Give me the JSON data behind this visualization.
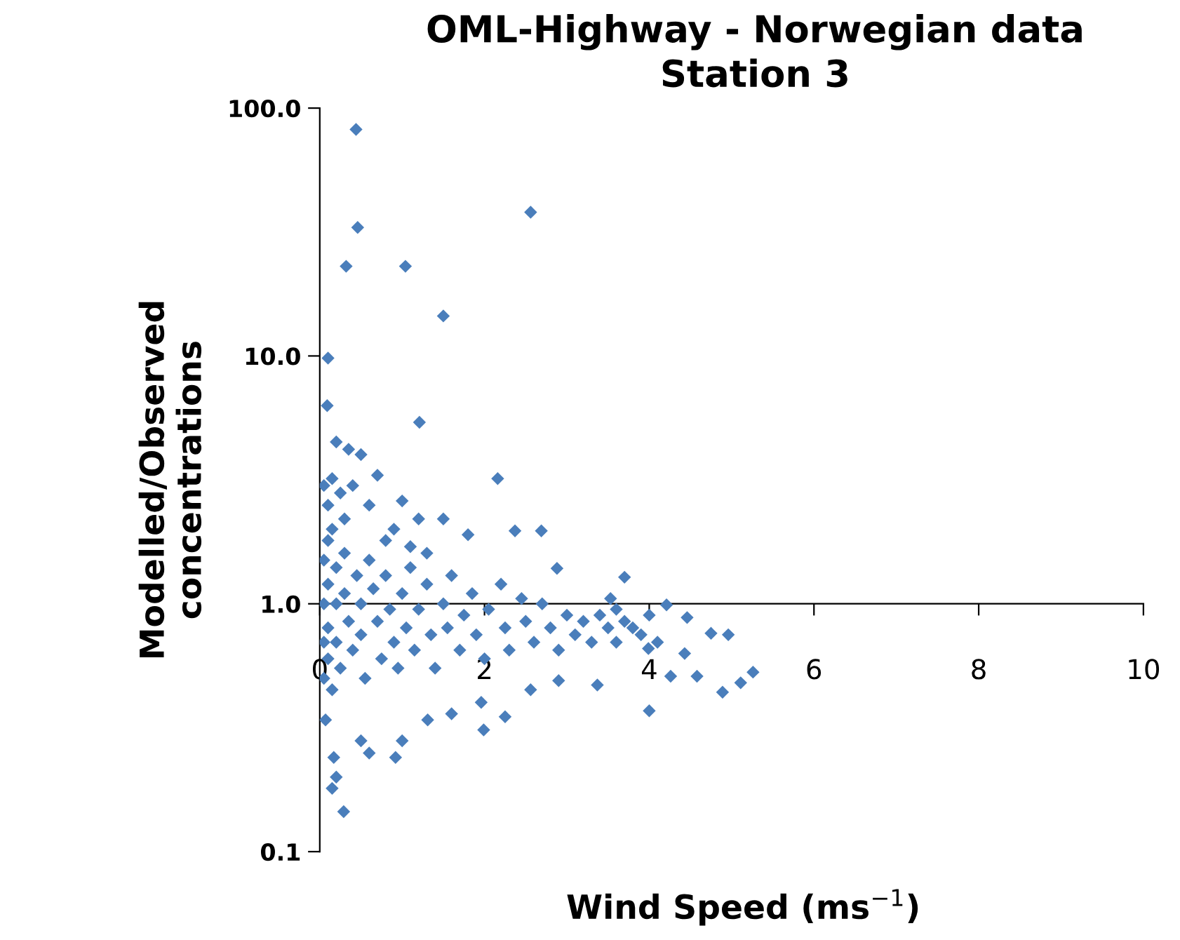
{
  "chart_data": {
    "type": "scatter",
    "title": "OML-Highway - Norwegian data\nStation 3",
    "xlabel": "Wind Speed (ms$^{−1}$)",
    "ylabel": "Modelled/Observed\nconcentrations",
    "log": "y",
    "grid": false,
    "marker": "diamond",
    "xlim": [
      0,
      10
    ],
    "xticks": [
      0,
      2,
      4,
      6,
      8,
      10
    ],
    "ylim": [
      0.1,
      100
    ],
    "yticks": [
      {
        "value": 0.1,
        "label": "0.1"
      },
      {
        "value": 1,
        "label": "1.0"
      },
      {
        "value": 10,
        "label": "10.0"
      },
      {
        "value": 100,
        "label": "100.0"
      }
    ],
    "series": [
      {
        "color": "#4a7ebb",
        "x": [
          0.44,
          0.46,
          2.56,
          0.32,
          1.04,
          1.5,
          0.1,
          0.09,
          1.21,
          0.2,
          0.35,
          0.5,
          0.15,
          0.4,
          0.7,
          0.6,
          1.0,
          1.2,
          0.9,
          1.5,
          1.8,
          2.16,
          2.37,
          2.69,
          2.88,
          3.7,
          1.3,
          0.3,
          0.1,
          4.46,
          4.75,
          4.96,
          5.26,
          5.11,
          4.89,
          4.58,
          4.0,
          4.26,
          4.43,
          3.99,
          4.21,
          3.53,
          0.29,
          0.15,
          0.2,
          0.17,
          0.6,
          0.92,
          1.0,
          1.31,
          1.6,
          1.99,
          2.25,
          2.56,
          2.9,
          3.37,
          1.96,
          0.5,
          0.07,
          0.05,
          0.05,
          0.05,
          0.05,
          0.1,
          0.1,
          0.1,
          0.1,
          0.15,
          0.2,
          0.2,
          0.2,
          0.25,
          0.3,
          0.3,
          0.35,
          0.4,
          0.45,
          0.5,
          0.5,
          0.55,
          0.6,
          0.65,
          0.7,
          0.75,
          0.8,
          0.85,
          0.9,
          0.95,
          1.0,
          1.05,
          1.1,
          1.15,
          1.2,
          1.3,
          1.35,
          1.4,
          1.5,
          1.55,
          1.6,
          1.7,
          1.75,
          1.85,
          1.9,
          2.0,
          2.05,
          2.2,
          2.25,
          2.3,
          2.45,
          2.5,
          2.6,
          2.7,
          2.8,
          2.9,
          3.0,
          3.1,
          3.2,
          3.3,
          3.4,
          3.5,
          3.6,
          3.7,
          3.8,
          3.9,
          4.0,
          4.1,
          3.6,
          0.15,
          0.25,
          0.05,
          0.8,
          1.1
        ],
        "values": [
          82,
          33,
          38,
          23,
          23,
          14.5,
          9.8,
          6.3,
          5.4,
          4.5,
          4.2,
          4.0,
          3.2,
          3.0,
          3.3,
          2.5,
          2.6,
          2.2,
          2.0,
          2.2,
          1.9,
          3.2,
          1.97,
          1.97,
          1.39,
          1.28,
          1.6,
          2.2,
          2.5,
          0.88,
          0.76,
          0.75,
          0.53,
          0.48,
          0.44,
          0.51,
          0.37,
          0.51,
          0.63,
          0.66,
          0.99,
          1.05,
          0.145,
          0.18,
          0.2,
          0.24,
          0.25,
          0.24,
          0.28,
          0.34,
          0.36,
          0.31,
          0.35,
          0.45,
          0.49,
          0.47,
          0.4,
          0.28,
          0.34,
          1.5,
          1.0,
          0.7,
          0.5,
          1.8,
          1.2,
          0.8,
          0.6,
          0.45,
          1.4,
          1.0,
          0.7,
          0.55,
          1.6,
          1.1,
          0.85,
          0.65,
          1.3,
          1.0,
          0.75,
          0.5,
          1.5,
          1.15,
          0.85,
          0.6,
          1.3,
          0.95,
          0.7,
          0.55,
          1.1,
          0.8,
          1.4,
          0.65,
          0.95,
          1.2,
          0.75,
          0.55,
          1.0,
          0.8,
          1.3,
          0.65,
          0.9,
          1.1,
          0.75,
          0.6,
          0.95,
          1.2,
          0.8,
          0.65,
          1.05,
          0.85,
          0.7,
          1.0,
          0.8,
          0.65,
          0.9,
          0.75,
          0.85,
          0.7,
          0.9,
          0.8,
          0.7,
          0.85,
          0.8,
          0.75,
          0.9,
          0.7,
          0.95,
          2.0,
          2.8,
          3.0,
          1.8,
          1.7
        ]
      }
    ]
  }
}
